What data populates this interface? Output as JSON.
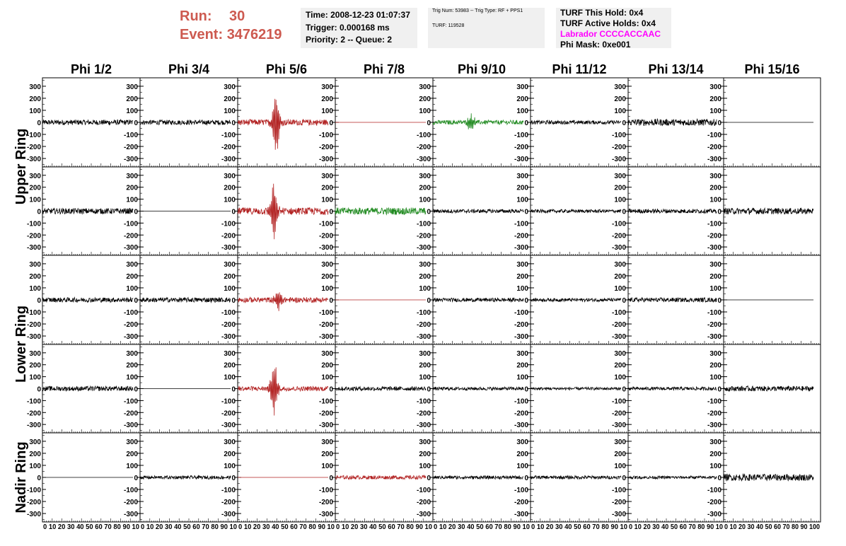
{
  "header": {
    "run_label": "Run:",
    "run_value": "30",
    "event_label": "Event:",
    "event_value": "3476219",
    "time": "Time: 2008-12-23 01:07:37",
    "trigger": "Trigger: 0.000168 ms",
    "priority": "Priority: 2 -- Queue: 2",
    "trig_info": "Trig Num: 53983 -- Trig Type: RF + PPS1",
    "turf_id": "TURF: 119528",
    "turf_this_hold": "TURF This Hold: 0x4",
    "turf_active_holds": "TURF Active Holds: 0x4",
    "labrador": "Labrador CCCCACCAAC",
    "phi_mask": "Phi Mask: 0xe001"
  },
  "colors": {
    "header_red": "#cd5a50",
    "trace_black": "#000000",
    "trace_red": "#b22222",
    "trace_green": "#228b22",
    "labrador_magenta": "#ff00ff",
    "info_box_bg": "#f0f0f0"
  },
  "chart_data": {
    "type": "line",
    "description_rows": [
      "Upper Ring",
      "Lower Ring",
      "Nadir Ring"
    ],
    "columns": [
      "Phi 1/2",
      "Phi 3/4",
      "Phi 5/6",
      "Phi 7/8",
      "Phi 9/10",
      "Phi 11/12",
      "Phi 13/14",
      "Phi 15/16"
    ],
    "ring_labels": [
      {
        "text": "Upper Ring"
      },
      {
        "text": "Lower Ring"
      },
      {
        "text": "Nadir Ring"
      }
    ],
    "ylim": [
      -370,
      370
    ],
    "yticks": [
      300,
      200,
      100,
      0,
      -100,
      -200,
      -300
    ],
    "xlim": [
      0,
      100
    ],
    "xticks": [
      0,
      10,
      20,
      30,
      40,
      50,
      60,
      70,
      80,
      90,
      100
    ],
    "xtick_label_strips": [
      "0 10 20 30 40 50 60 70 80 90 10",
      "0 10 20 30 40 50 60 70 80 90 10",
      "0 10 20 30 40 50 60 70 80 90 10",
      "0 10 20 30 40 50 60 70 80 90 10",
      "0 10 20 30 40 50 60 70 80 90 10",
      "0 10 20 30 40 50 60 70 80 90 10",
      "0 10 20 30 40 50 60 70 80 90 10",
      "0 10 20 30 40 50 60 70 80 90 100"
    ],
    "panels": [
      [
        {
          "color": "black",
          "amp": 22,
          "pulse": 0
        },
        {
          "color": "black",
          "amp": 20,
          "pulse": 0
        },
        {
          "color": "red",
          "amp": 25,
          "pulse": 330,
          "center": 42
        },
        {
          "color": "red",
          "amp": 0,
          "pulse": 0
        },
        {
          "color": "green",
          "amp": 18,
          "pulse": 90,
          "center": 42
        },
        {
          "color": "black",
          "amp": 16,
          "pulse": 0
        },
        {
          "color": "black",
          "amp": 28,
          "pulse": 0
        },
        {
          "color": "black",
          "amp": 0,
          "pulse": 0
        }
      ],
      [
        {
          "color": "black",
          "amp": 24,
          "pulse": 0
        },
        {
          "color": "black",
          "amp": 0,
          "pulse": 0
        },
        {
          "color": "red",
          "amp": 30,
          "pulse": 300,
          "center": 40
        },
        {
          "color": "green",
          "amp": 30,
          "pulse": 0
        },
        {
          "color": "black",
          "amp": 16,
          "pulse": 0
        },
        {
          "color": "black",
          "amp": 14,
          "pulse": 0
        },
        {
          "color": "black",
          "amp": 18,
          "pulse": 0
        },
        {
          "color": "black",
          "amp": 26,
          "pulse": 0
        }
      ],
      [
        {
          "color": "black",
          "amp": 20,
          "pulse": 0
        },
        {
          "color": "black",
          "amp": 20,
          "pulse": 0
        },
        {
          "color": "red",
          "amp": 22,
          "pulse": 110,
          "center": 45
        },
        {
          "color": "red",
          "amp": 0,
          "pulse": 0
        },
        {
          "color": "black",
          "amp": 16,
          "pulse": 0
        },
        {
          "color": "black",
          "amp": 14,
          "pulse": 0
        },
        {
          "color": "black",
          "amp": 18,
          "pulse": 0
        },
        {
          "color": "black",
          "amp": 0,
          "pulse": 0
        }
      ],
      [
        {
          "color": "black",
          "amp": 20,
          "pulse": 0
        },
        {
          "color": "black",
          "amp": 0,
          "pulse": 0
        },
        {
          "color": "red",
          "amp": 20,
          "pulse": 260,
          "center": 40
        },
        {
          "color": "black",
          "amp": 18,
          "pulse": 0
        },
        {
          "color": "black",
          "amp": 14,
          "pulse": 0
        },
        {
          "color": "black",
          "amp": 12,
          "pulse": 0
        },
        {
          "color": "black",
          "amp": 14,
          "pulse": 0
        },
        {
          "color": "black",
          "amp": 22,
          "pulse": 0
        }
      ],
      [
        {
          "color": "black",
          "amp": 0,
          "pulse": 0
        },
        {
          "color": "black",
          "amp": 14,
          "pulse": 0
        },
        {
          "color": "red",
          "amp": 0,
          "pulse": 0
        },
        {
          "color": "red",
          "amp": 16,
          "pulse": 0
        },
        {
          "color": "black",
          "amp": 14,
          "pulse": 0
        },
        {
          "color": "black",
          "amp": 14,
          "pulse": 0
        },
        {
          "color": "black",
          "amp": 12,
          "pulse": 0
        },
        {
          "color": "black",
          "amp": 28,
          "pulse": 0
        }
      ]
    ]
  }
}
